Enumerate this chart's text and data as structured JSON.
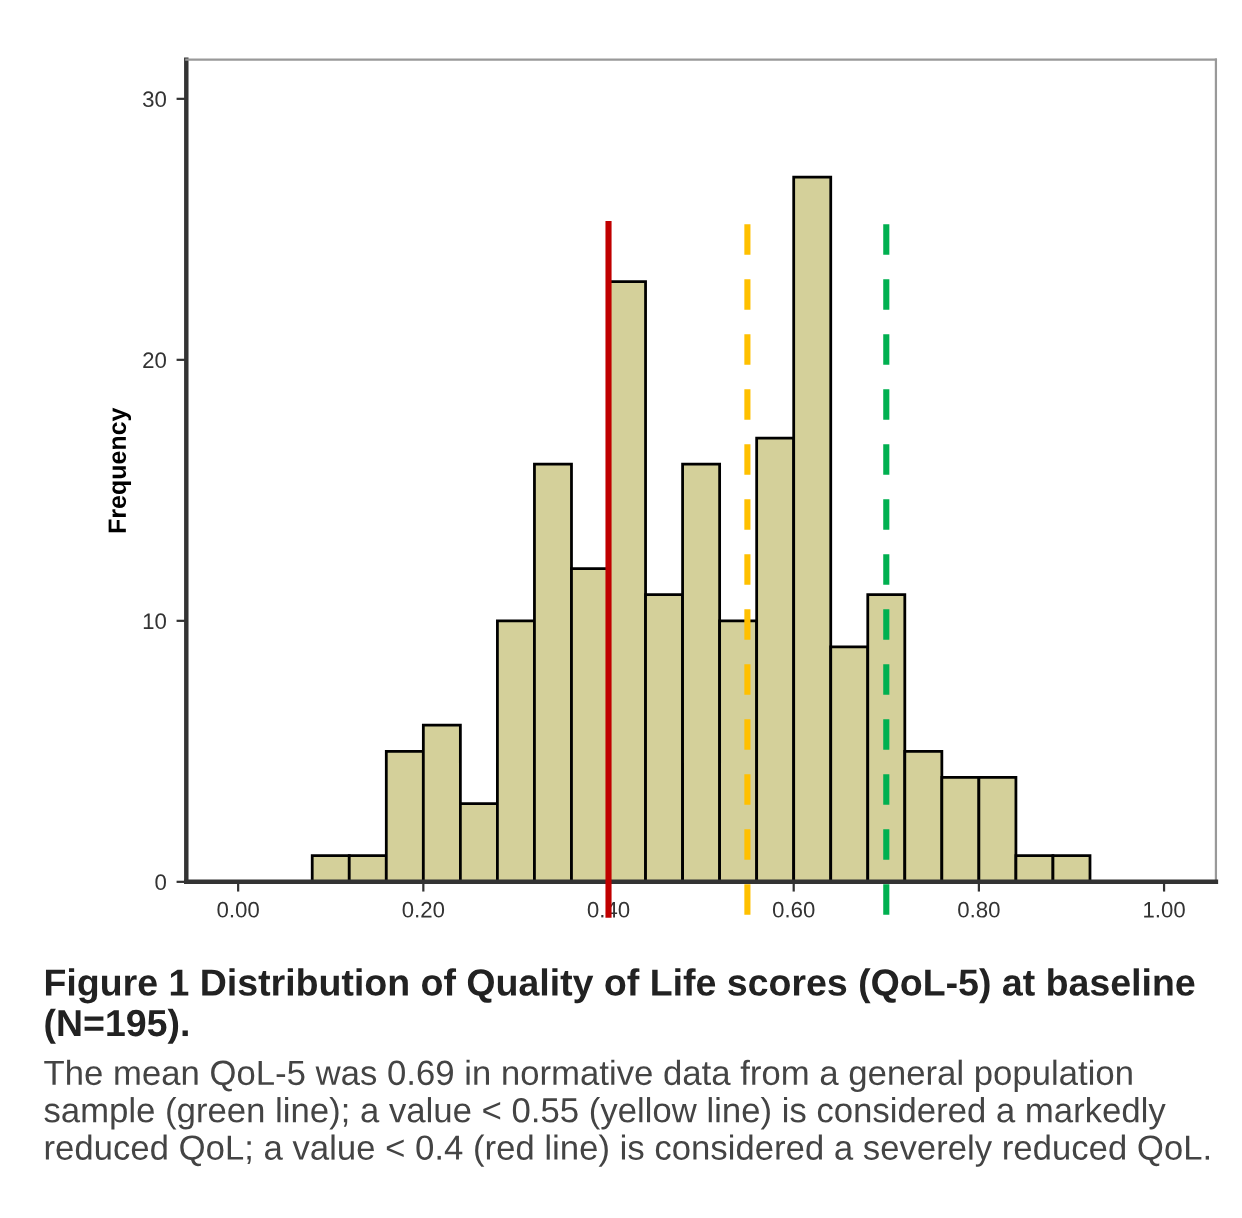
{
  "chart_data": {
    "type": "histogram",
    "title": "Figure 1 Distribution of Quality of Life scores (QoL-5) at baseline (N=195).",
    "ylabel": "Frequency",
    "bins": [
      0.08,
      0.12,
      0.16,
      0.2,
      0.24,
      0.28,
      0.32,
      0.36,
      0.4,
      0.44,
      0.48,
      0.52,
      0.56,
      0.6,
      0.64,
      0.68,
      0.72,
      0.76,
      0.8,
      0.84,
      0.88,
      0.92
    ],
    "values": [
      1,
      1,
      5,
      6,
      3,
      10,
      16,
      12,
      23,
      11,
      16,
      10,
      17,
      27,
      9,
      11,
      5,
      4,
      4,
      1,
      1
    ],
    "color": "#d4d09a",
    "xlim": [
      -0.056,
      1.056
    ],
    "xticks": [
      {
        "value": 0,
        "label": "0.00"
      },
      {
        "value": 0.2,
        "label": "0.20"
      },
      {
        "value": 0.4,
        "label": "0.40"
      },
      {
        "value": 0.6,
        "label": "0.60"
      },
      {
        "value": 0.8,
        "label": "0.80"
      },
      {
        "value": 1,
        "label": "1.00"
      }
    ],
    "ylim": [
      0,
      31.5
    ],
    "yticks": [
      0,
      10,
      20,
      30
    ],
    "grid": false,
    "legend": false,
    "ref_lines": [
      {
        "axis": "x",
        "value": 0.4,
        "color": "#c00000",
        "line_style": "solid"
      },
      {
        "axis": "x",
        "value": 0.55,
        "color": "#ffc000",
        "line_style": "dashed"
      },
      {
        "axis": "x",
        "value": 0.7,
        "color": "#00b050",
        "line_style": "dashed"
      }
    ],
    "annotations": [
      "The mean QoL-5 was 0.69 in normative data from a general population sample (green line); a value < 0.55 (yellow line) is considered a markedly reduced QoL; a value < 0.4 (red line) is considered a severely reduced QoL."
    ]
  }
}
